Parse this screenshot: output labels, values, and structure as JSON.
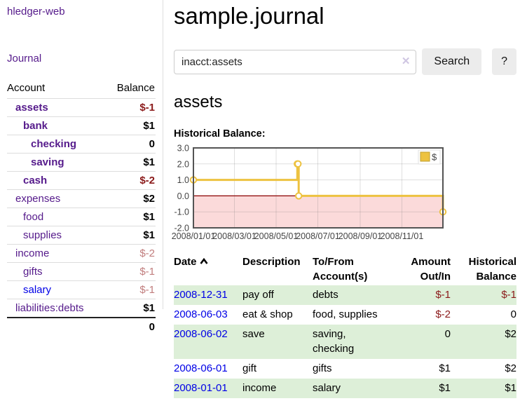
{
  "app": {
    "brand": "hledger-web"
  },
  "sidebar": {
    "journal_link": "Journal",
    "accounts_table": {
      "account_header": "Account",
      "balance_header": "Balance",
      "rows": [
        {
          "name": "assets",
          "depth": 1,
          "bold": true,
          "name_color": "purple",
          "balance": "$-1",
          "balance_style": "neg-strong"
        },
        {
          "name": "bank",
          "depth": 2,
          "bold": true,
          "name_color": "purple",
          "balance": "$1",
          "balance_style": "pos"
        },
        {
          "name": "checking",
          "depth": 3,
          "bold": true,
          "name_color": "purple",
          "balance": "0",
          "balance_style": "pos"
        },
        {
          "name": "saving",
          "depth": 3,
          "bold": true,
          "name_color": "purple",
          "balance": "$1",
          "balance_style": "pos"
        },
        {
          "name": "cash",
          "depth": 2,
          "bold": true,
          "name_color": "purple",
          "balance": "$-2",
          "balance_style": "neg-strong"
        },
        {
          "name": "expenses",
          "depth": 1,
          "bold": false,
          "name_color": "purple",
          "balance": "$2",
          "balance_style": "pos"
        },
        {
          "name": "food",
          "depth": 2,
          "bold": false,
          "name_color": "purple",
          "balance": "$1",
          "balance_style": "pos"
        },
        {
          "name": "supplies",
          "depth": 2,
          "bold": false,
          "name_color": "purple",
          "balance": "$1",
          "balance_style": "pos"
        },
        {
          "name": "income",
          "depth": 1,
          "bold": false,
          "name_color": "purple",
          "balance": "$-2",
          "balance_style": "neg-light"
        },
        {
          "name": "gifts",
          "depth": 2,
          "bold": false,
          "name_color": "purple",
          "balance": "$-1",
          "balance_style": "neg-light"
        },
        {
          "name": "salary",
          "depth": 2,
          "bold": false,
          "name_color": "blue",
          "balance": "$-1",
          "balance_style": "neg-light"
        },
        {
          "name": "liabilities:debts",
          "depth": 1,
          "bold": false,
          "name_color": "purple",
          "balance": "$1",
          "balance_style": "pos"
        }
      ],
      "total": "0"
    }
  },
  "main": {
    "title": "sample.journal",
    "search": {
      "value": "inacct:assets",
      "clear_icon": "✕",
      "button_label": "Search",
      "help_label": "?"
    },
    "account_heading": "assets"
  },
  "chart_data": {
    "type": "line",
    "title": "Historical Balance:",
    "step": true,
    "series": [
      {
        "name": "$",
        "color": "#edc240",
        "points": [
          {
            "date": "2008-01-01",
            "value": 1
          },
          {
            "date": "2008-06-01",
            "value": 2
          },
          {
            "date": "2008-06-02",
            "value": 2
          },
          {
            "date": "2008-06-03",
            "value": 0
          },
          {
            "date": "2008-12-31",
            "value": -1
          }
        ]
      }
    ],
    "x_domain": [
      "2008-01-01",
      "2008-12-31"
    ],
    "x_ticks": [
      "2008/01/01",
      "2008/03/01",
      "2008/05/01",
      "2008/07/01",
      "2008/09/01",
      "2008/11/01"
    ],
    "y_ticks": [
      3.0,
      2.0,
      1.0,
      0.0,
      -1.0,
      -2.0
    ],
    "ylim": [
      -2,
      3
    ],
    "grid": true,
    "legend_position": "top-right",
    "negative_region_color": "#fbdada",
    "zero_line_color": "#8b0000",
    "border_color": "#545454"
  },
  "register": {
    "headers": [
      "Date",
      "Description",
      "To/From Account(s)",
      "Amount Out/In",
      "Historical Balance"
    ],
    "rows": [
      {
        "date": "2008-12-31",
        "description": "pay off",
        "accounts": "debts",
        "amount": "$-1",
        "amount_style": "neg",
        "balance": "$-1",
        "balance_style": "neg",
        "shaded": true
      },
      {
        "date": "2008-06-03",
        "description": "eat & shop",
        "accounts": "food, supplies",
        "amount": "$-2",
        "amount_style": "neg",
        "balance": "0",
        "balance_style": "pos",
        "shaded": false
      },
      {
        "date": "2008-06-02",
        "description": "save",
        "accounts": "saving, checking",
        "amount": "0",
        "amount_style": "pos",
        "balance": "$2",
        "balance_style": "pos",
        "shaded": true
      },
      {
        "date": "2008-06-01",
        "description": "gift",
        "accounts": "gifts",
        "amount": "$1",
        "amount_style": "pos",
        "balance": "$2",
        "balance_style": "pos",
        "shaded": false
      },
      {
        "date": "2008-01-01",
        "description": "income",
        "accounts": "salary",
        "amount": "$1",
        "amount_style": "pos",
        "balance": "$1",
        "balance_style": "pos",
        "shaded": true
      }
    ]
  },
  "colors": {
    "link_purple": "#551a8b",
    "link_blue": "#0000e6",
    "negative_strong": "#8b1a1a",
    "negative_light": "#c17d7d",
    "row_shade_green": "#ddefd8",
    "series_gold": "#edc240"
  }
}
